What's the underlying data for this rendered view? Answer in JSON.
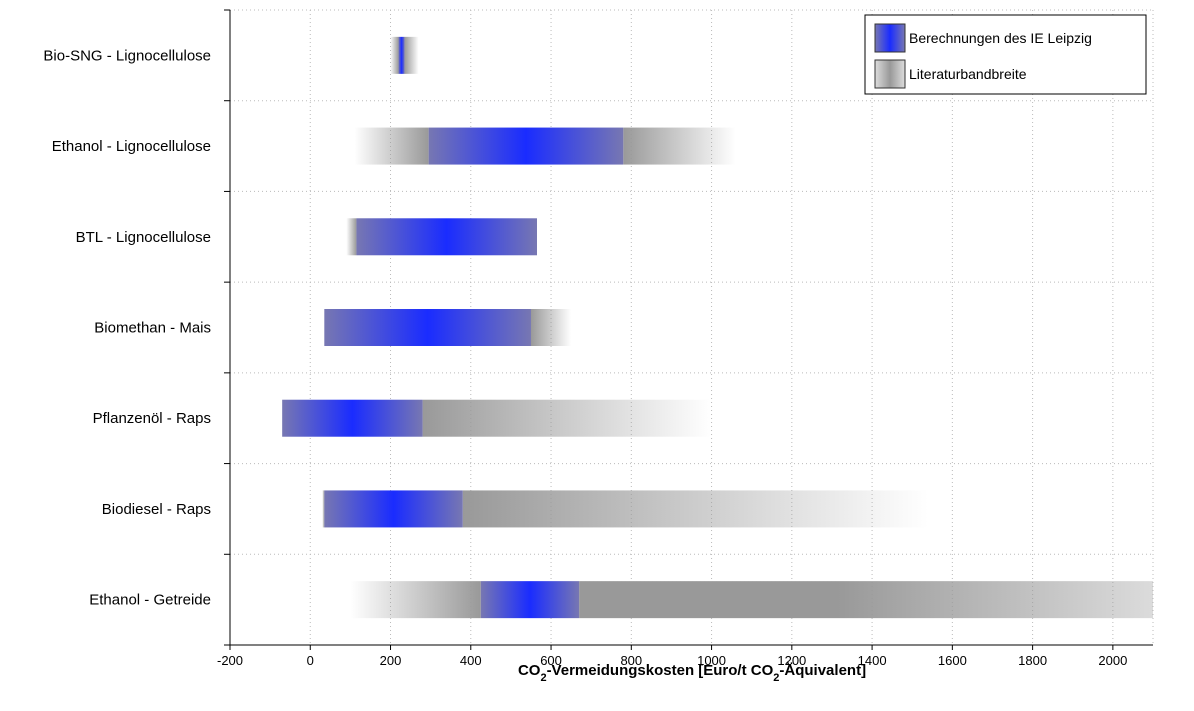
{
  "chart_data": {
    "type": "bar",
    "orientation": "horizontal-range",
    "categories": [
      "Bio-SNG - Lignocellulose",
      "Ethanol - Lignocellulose",
      "BTL - Lignocellulose",
      "Biomethan - Mais",
      "Pflanzenöl - Raps",
      "Biodiesel - Raps",
      "Ethanol - Getreide"
    ],
    "series": [
      {
        "name": "Literaturbandbreite",
        "ranges": [
          [
            200,
            270
          ],
          [
            110,
            1060
          ],
          [
            90,
            565
          ],
          [
            35,
            650
          ],
          [
            -70,
            1000
          ],
          [
            30,
            1540
          ],
          [
            100,
            2100
          ]
        ]
      },
      {
        "name": "Berechnungen des IE Leipzig",
        "ranges": [
          [
            220,
            235
          ],
          [
            295,
            780
          ],
          [
            115,
            565
          ],
          [
            35,
            550
          ],
          [
            -70,
            280
          ],
          [
            35,
            380
          ],
          [
            425,
            670
          ]
        ]
      }
    ],
    "xlabel_parts": [
      "CO",
      "2",
      "-Vermeidungskosten [Euro/t CO",
      "2",
      "-Äquivalent]"
    ],
    "xlim": [
      -200,
      2100
    ],
    "xticks": [
      -200,
      0,
      200,
      400,
      600,
      800,
      1000,
      1200,
      1400,
      1600,
      1800,
      2000
    ],
    "grid": true,
    "legend_position": "top-right",
    "colors": {
      "blue_peak": "#1a2cff",
      "blue_edge": "#7777b2",
      "gray": "#999999"
    }
  }
}
